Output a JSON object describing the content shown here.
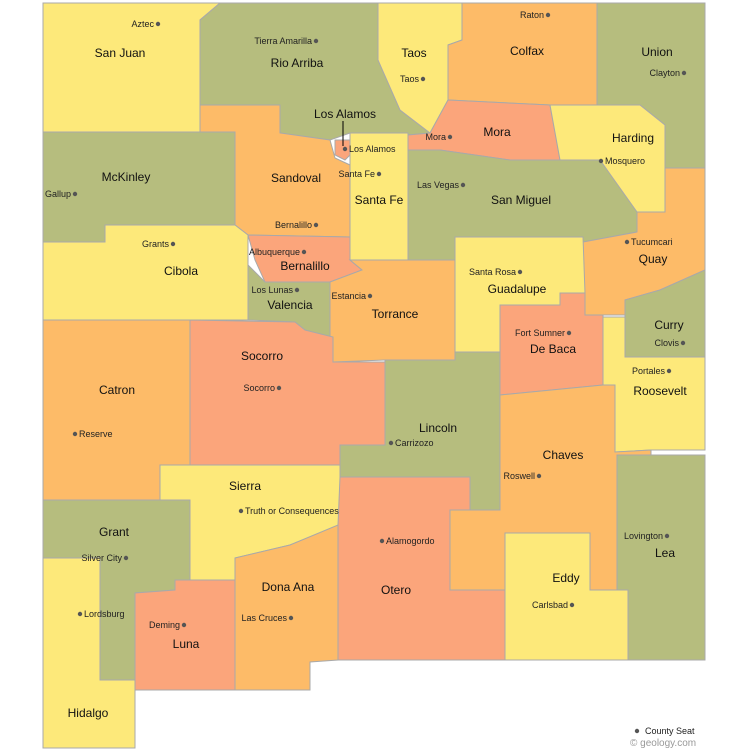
{
  "colors": {
    "yellow": "#fde97a",
    "green": "#b6bd7e",
    "orange": "#fdbb68",
    "salmon": "#fba57b",
    "border": "#a9a9a9",
    "seat_dot": "#555555"
  },
  "counties": [
    {
      "name": "San Juan",
      "seat": "Aztec",
      "color": "yellow"
    },
    {
      "name": "Rio Arriba",
      "seat": "Tierra Amarilla",
      "color": "green"
    },
    {
      "name": "Taos",
      "seat": "Taos",
      "color": "yellow"
    },
    {
      "name": "Colfax",
      "seat": "Raton",
      "color": "orange"
    },
    {
      "name": "Union",
      "seat": "Clayton",
      "color": "green"
    },
    {
      "name": "Mora",
      "seat": "Mora",
      "color": "salmon"
    },
    {
      "name": "Harding",
      "seat": "Mosquero",
      "color": "yellow"
    },
    {
      "name": "McKinley",
      "seat": "Gallup",
      "color": "green"
    },
    {
      "name": "Sandoval",
      "seat": "Bernalillo",
      "color": "orange"
    },
    {
      "name": "Los Alamos",
      "seat": "Los Alamos",
      "color": "salmon"
    },
    {
      "name": "Santa Fe",
      "seat": "Santa Fe",
      "color": "yellow"
    },
    {
      "name": "San Miguel",
      "seat": "Las Vegas",
      "color": "green"
    },
    {
      "name": "Quay",
      "seat": "Tucumcari",
      "color": "orange"
    },
    {
      "name": "Cibola",
      "seat": "Grants",
      "color": "yellow"
    },
    {
      "name": "Bernalillo",
      "seat": "Albuquerque",
      "color": "salmon"
    },
    {
      "name": "Valencia",
      "seat": "Los Lunas",
      "color": "green"
    },
    {
      "name": "Torrance",
      "seat": "Estancia",
      "color": "orange"
    },
    {
      "name": "Guadalupe",
      "seat": "Santa Rosa",
      "color": "yellow"
    },
    {
      "name": "De Baca",
      "seat": "Fort Sumner",
      "color": "salmon"
    },
    {
      "name": "Curry",
      "seat": "Clovis",
      "color": "green"
    },
    {
      "name": "Roosevelt",
      "seat": "Portales",
      "color": "yellow"
    },
    {
      "name": "Catron",
      "seat": "Reserve",
      "color": "orange"
    },
    {
      "name": "Socorro",
      "seat": "Socorro",
      "color": "salmon"
    },
    {
      "name": "Lincoln",
      "seat": "Carrizozo",
      "color": "green"
    },
    {
      "name": "Chaves",
      "seat": "Roswell",
      "color": "orange"
    },
    {
      "name": "Sierra",
      "seat": "Truth or Consequences",
      "color": "yellow"
    },
    {
      "name": "Grant",
      "seat": "Silver City",
      "color": "green"
    },
    {
      "name": "Dona Ana",
      "seat": "Las Cruces",
      "color": "orange"
    },
    {
      "name": "Otero",
      "seat": "Alamogordo",
      "color": "salmon"
    },
    {
      "name": "Eddy",
      "seat": "Carlsbad",
      "color": "yellow"
    },
    {
      "name": "Lea",
      "seat": "Lovington",
      "color": "green"
    },
    {
      "name": "Luna",
      "seat": "Deming",
      "color": "salmon"
    },
    {
      "name": "Hidalgo",
      "seat": "Lordsburg",
      "color": "yellow"
    }
  ],
  "legend": {
    "label": "County Seat"
  },
  "credit": "© geology.com"
}
